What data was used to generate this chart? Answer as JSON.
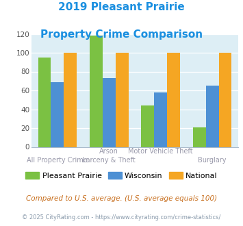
{
  "title_line1": "2019 Pleasant Prairie",
  "title_line2": "Property Crime Comparison",
  "title_color": "#1a8fe0",
  "pleasant_prairie": [
    95,
    118,
    44,
    21
  ],
  "wisconsin": [
    69,
    73,
    58,
    65
  ],
  "national": [
    100,
    100,
    100,
    100
  ],
  "pleasant_prairie_color": "#7bc143",
  "wisconsin_color": "#4d90d4",
  "national_color": "#f5a623",
  "ylim": [
    0,
    120
  ],
  "yticks": [
    0,
    20,
    40,
    60,
    80,
    100,
    120
  ],
  "background_color": "#ddeef5",
  "top_labels": [
    "",
    "Arson",
    "Motor Vehicle Theft",
    ""
  ],
  "bot_labels": [
    "All Property Crime",
    "Larceny & Theft",
    "",
    "Burglary"
  ],
  "footnote1": "Compared to U.S. average. (U.S. average equals 100)",
  "footnote2": "© 2025 CityRating.com - https://www.cityrating.com/crime-statistics/",
  "footnote1_color": "#c87020",
  "footnote2_color": "#8899aa",
  "legend_labels": [
    "Pleasant Prairie",
    "Wisconsin",
    "National"
  ],
  "bar_width": 0.25
}
